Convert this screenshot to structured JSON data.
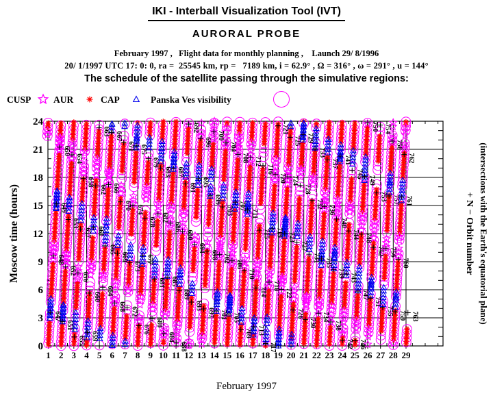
{
  "header": {
    "title": "IKI - Interball Visualization Tool (IVT)",
    "subtitle": "AURORAL PROBE",
    "line1": "February 1997 ,   Flight data for monthly planning ,    Launch 29/ 8/1996",
    "line2": "20/ 1/1997 UTC 17: 0: 0, ra =  25545 km, rp =   7189 km, i = 62.9° , Ω = 316° , ω = 291° , u = 144°",
    "line3": "The schedule of the satellite passing through the simulative regions:"
  },
  "legend": {
    "items": [
      {
        "label": "CUSP",
        "symbol": "star",
        "color": "#ff00ff"
      },
      {
        "label": "AUR",
        "symbol": "asterisk",
        "color": "#ff0000"
      },
      {
        "label": "CAP",
        "symbol": "triangle",
        "color": "#0000ee"
      },
      {
        "label": "Panska Ves visibility",
        "symbol": "circle",
        "color": "#ff00ff"
      }
    ]
  },
  "chart_data": {
    "type": "scatter",
    "title": "The schedule of the satellite passing through the simulative regions",
    "xlabel": "February 1997",
    "ylabel": "Moscow time (hours)",
    "right_label_1": "+ N − Orbit number",
    "right_label_2": "(intersections with the Earth's equatorial plane)",
    "x_ticks": [
      1,
      2,
      3,
      4,
      5,
      6,
      7,
      8,
      9,
      10,
      11,
      12,
      13,
      14,
      15,
      16,
      17,
      18,
      19,
      20,
      21,
      22,
      23,
      24,
      25,
      26,
      27,
      28,
      29
    ],
    "y_ticks": [
      0,
      3,
      6,
      9,
      12,
      15,
      18,
      21,
      24
    ],
    "x_range_days": [
      1,
      31.9
    ],
    "y_range_hours": [
      0,
      24
    ],
    "grid": true,
    "orbit_model": {
      "first_orbit": 647,
      "last_orbit": 763,
      "period_hours": 5.7931,
      "first_center_hour": 1.2,
      "data_end_hour": 674,
      "label_offset_hours": 1.8
    },
    "regions": [
      {
        "name": "PanskaVes",
        "symbol": "circle",
        "color": "#ff00ff",
        "halfspan_h": 2.0,
        "halfspan_jit": 0.7,
        "step_h": 0.46,
        "size": 6.9
      },
      {
        "name": "AUR",
        "symbol": "asterisk",
        "color": "#ff0000",
        "halfspan_h": 1.25,
        "halfspan_jit": 0.75,
        "step_h": 0.27,
        "size": 3.8
      },
      {
        "name": "CUSP",
        "symbol": "star",
        "color": "#ff00ff",
        "count_min": 2,
        "count_spread": 2.5,
        "skip_p": 0.15,
        "step_h": 0.42,
        "size": 5.6
      },
      {
        "name": "CAP",
        "symbol": "triangle",
        "color": "#0000ee",
        "count_min": 3,
        "count_spread": 3.7,
        "skip_p": 0.2,
        "step_h": 0.36,
        "size": 4.2
      }
    ],
    "marker_color": "#000000"
  },
  "footer": {
    "caption": "February 1997"
  }
}
